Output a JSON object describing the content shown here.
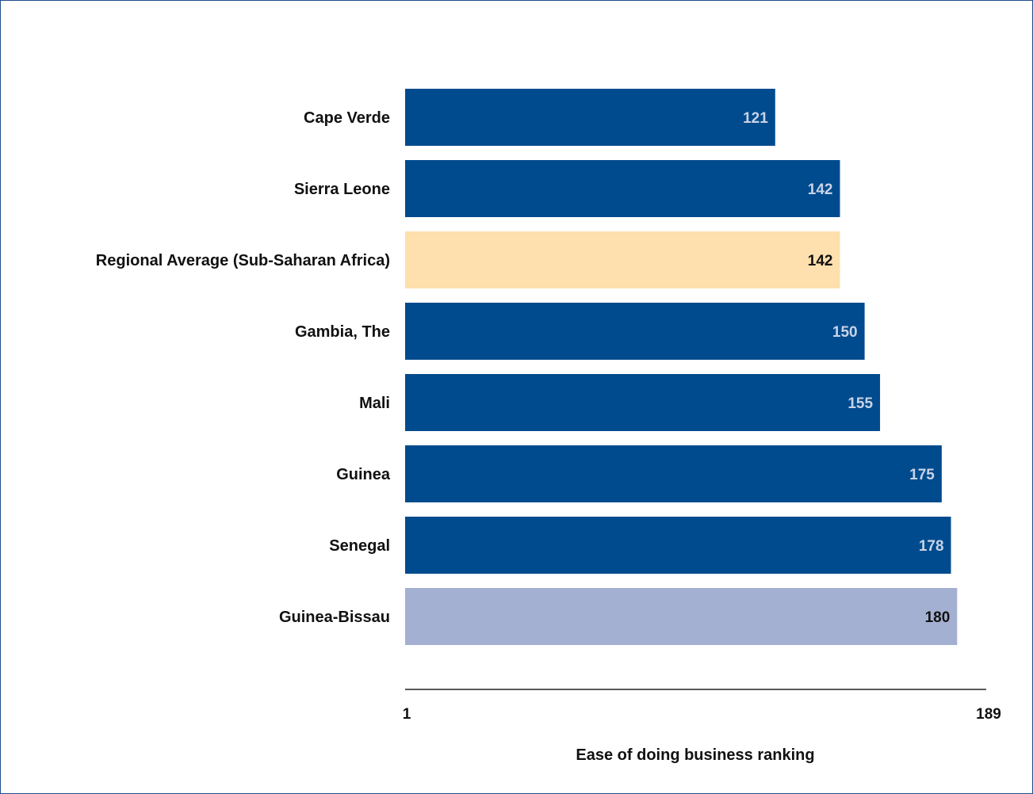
{
  "chart_data": {
    "type": "bar",
    "orientation": "horizontal",
    "categories": [
      "Cape Verde",
      "Sierra Leone",
      "Regional Average (Sub-Saharan Africa)",
      "Gambia, The",
      "Mali",
      "Guinea",
      "Senegal",
      "Guinea-Bissau"
    ],
    "values": [
      121,
      142,
      142,
      150,
      155,
      175,
      178,
      180
    ],
    "value_labels": [
      "121",
      "142",
      "142",
      "150",
      "155",
      "175",
      "178",
      "180"
    ],
    "bar_colors": [
      "#004b8d",
      "#004b8d",
      "#fde0ae",
      "#004b8d",
      "#004b8d",
      "#004b8d",
      "#004b8d",
      "#a4b0d2"
    ],
    "value_label_colors": [
      "#c9d3e8",
      "#c9d3e8",
      "#111111",
      "#c9d3e8",
      "#c9d3e8",
      "#c9d3e8",
      "#c9d3e8",
      "#111111"
    ],
    "xlim": [
      1,
      189
    ],
    "x_ticks": [
      "1",
      "189"
    ],
    "xlabel": "Ease of doing business ranking",
    "ylabel": "",
    "title": "",
    "grid": false,
    "legend": "none"
  },
  "colors": {
    "frame_border": "#1f4e8c",
    "axis_line": "#222222"
  }
}
